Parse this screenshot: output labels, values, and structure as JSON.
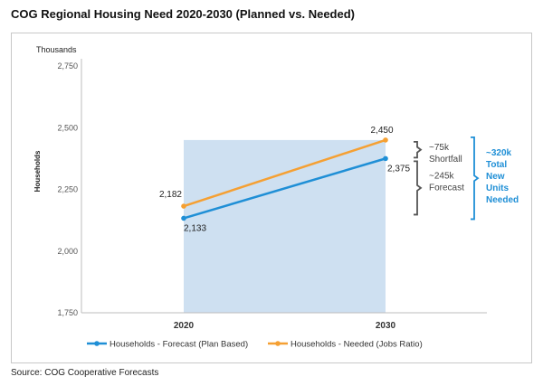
{
  "title": "COG Regional Housing Need 2020-2030 (Planned vs. Needed)",
  "source": "Source: COG Cooperative Forecasts",
  "chart_data": {
    "type": "line",
    "title": "COG Regional Housing Need 2020-2030 (Planned vs. Needed)",
    "ylabel": "Households",
    "yunit": "Thousands",
    "ylim": [
      1750,
      2750
    ],
    "yticks": [
      "1,750",
      "2,000",
      "2,250",
      "2,500",
      "2,750"
    ],
    "yticks_values": [
      1750,
      2000,
      2250,
      2500,
      2750
    ],
    "categories": [
      "2020",
      "2030"
    ],
    "grid": false,
    "legend_position": "bottom",
    "series": [
      {
        "name": "Households - Forecast (Plan Based)",
        "color": "#1f8fd6",
        "values": [
          2133,
          2375
        ],
        "labels": [
          "2,133",
          "2,375"
        ]
      },
      {
        "name": "Households - Needed (Jobs Ratio)",
        "color": "#f5a033",
        "values": [
          2182,
          2450
        ],
        "labels": [
          "2,182",
          "2,450"
        ]
      }
    ],
    "shaded_region": {
      "x_from": "2020",
      "x_to": "2030",
      "y_from": 1750,
      "y_to": 2450,
      "color": "#c9ddf0"
    },
    "annotations": {
      "shortfall": {
        "line1": "~75k",
        "line2": "Shortfall",
        "y_from": 2375,
        "y_to": 2450
      },
      "forecast": {
        "line1": "~245k",
        "line2": "Forecast",
        "y_from": 2133,
        "y_to": 2375
      },
      "total": {
        "lines": [
          "~320k",
          "Total",
          "New",
          "Units",
          "Needed"
        ],
        "color": "#1f8fd6",
        "y_from": 2133,
        "y_to": 2450
      }
    }
  }
}
